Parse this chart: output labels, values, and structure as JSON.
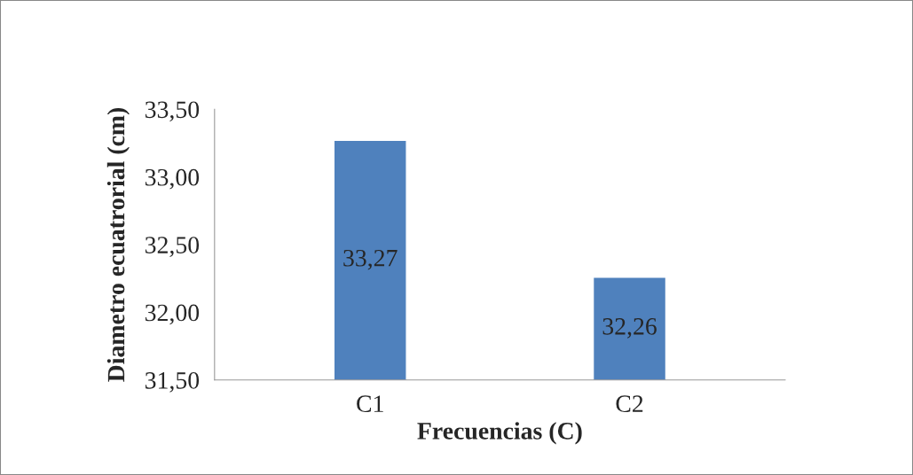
{
  "chart_data": {
    "type": "bar",
    "xlabel": "Frecuencias (C)",
    "ylabel": "Diametro ecuatrorial (cm)",
    "categories": [
      "C1",
      "C2"
    ],
    "values": [
      33.27,
      32.26
    ],
    "value_labels": [
      "33,27",
      "32,26"
    ],
    "color": "#4f81bd",
    "ylim": [
      31.5,
      33.5
    ],
    "yticks": [
      {
        "value": 31.5,
        "label": "31,50"
      },
      {
        "value": 32.0,
        "label": "32,00"
      },
      {
        "value": 32.5,
        "label": "32,50"
      },
      {
        "value": 33.0,
        "label": "33,00"
      },
      {
        "value": 33.5,
        "label": "33,50"
      }
    ],
    "grid": false
  }
}
